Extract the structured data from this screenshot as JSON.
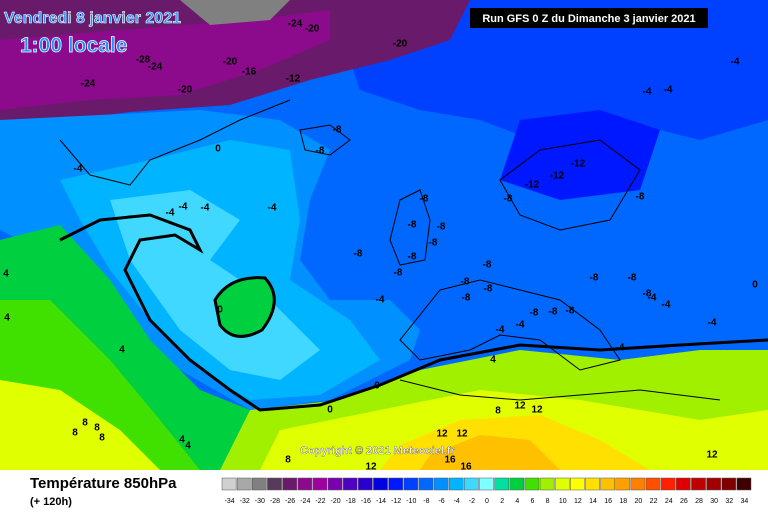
{
  "header": {
    "date": "Vendredi 8 janvier 2021",
    "time": "1:00 locale",
    "run": "Run GFS 0 Z du Dimanche 3 janvier 2021"
  },
  "copyright": "Copyright © 2021 Meteociel.fr",
  "footer": {
    "title": "Température 850hPa",
    "lead": "(+ 120h)"
  },
  "legend": {
    "values": [
      -34,
      -32,
      -30,
      -28,
      -26,
      -24,
      -22,
      -20,
      -18,
      -16,
      -14,
      -12,
      -10,
      -8,
      -6,
      -4,
      -2,
      0,
      2,
      4,
      6,
      8,
      10,
      12,
      14,
      16,
      18,
      20,
      22,
      24,
      26,
      28,
      30,
      32,
      34
    ],
    "colors": [
      "#d0d0d0",
      "#a8a8a8",
      "#808080",
      "#5a3a5a",
      "#6a1a6a",
      "#8c0a8c",
      "#a000a0",
      "#7a00b0",
      "#5000c0",
      "#2a00d0",
      "#0000e0",
      "#0018ff",
      "#0040ff",
      "#0068ff",
      "#0090ff",
      "#00b4ff",
      "#40d8ff",
      "#80ffff",
      "#00e0a0",
      "#00d040",
      "#40e000",
      "#a0f000",
      "#e0ff00",
      "#ffff00",
      "#ffe000",
      "#ffc000",
      "#ffa000",
      "#ff8000",
      "#ff5000",
      "#ff2000",
      "#e00000",
      "#c00000",
      "#a00000",
      "#800000",
      "#400000"
    ]
  },
  "isotherm_labels": [
    -24,
    -20,
    -20,
    -28,
    -24,
    -20,
    -16,
    -12,
    -20,
    -24,
    -4,
    -4,
    -4,
    -8,
    -8,
    0,
    -4,
    -12,
    -12,
    -12,
    -8,
    -8,
    -4,
    -4,
    -4,
    -4,
    -8,
    -8,
    -8,
    -8,
    -8,
    -8,
    -8,
    -8,
    -8,
    -8,
    -8,
    -8,
    -8,
    -8,
    -4,
    -4,
    0,
    -4,
    0,
    -8,
    -8,
    -8,
    -4,
    -4,
    -4,
    4,
    4,
    4,
    -4,
    4,
    0,
    0,
    8,
    8,
    8,
    8,
    8,
    12,
    12,
    4,
    4,
    12,
    12,
    8,
    12,
    12,
    16,
    16
  ]
}
